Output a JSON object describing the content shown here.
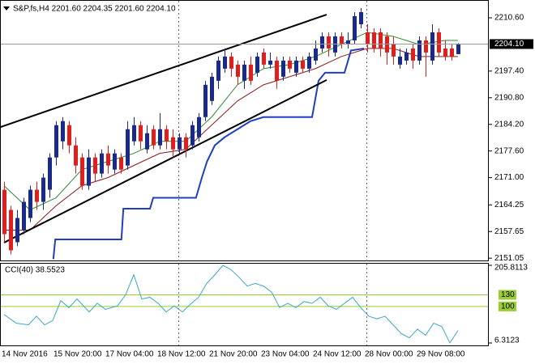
{
  "chart_data": {
    "type": "candlestick",
    "title": "S&P,fs,H4 2201.60 2204.35 2201.60 2204.10",
    "categories": [
      "14 Nov 2016",
      null,
      null,
      null,
      null,
      null,
      null,
      null,
      "15 Nov 20:00",
      null,
      null,
      null,
      null,
      null,
      null,
      null,
      "17 Nov 04:00",
      null,
      null,
      null,
      null,
      null,
      null,
      null,
      "18 Nov 12:00",
      null,
      null,
      null,
      null,
      null,
      null,
      null,
      "21 Nov 20:00",
      null,
      null,
      null,
      null,
      null,
      null,
      null,
      "23 Nov 04:00",
      null,
      null,
      null,
      null,
      null,
      null,
      null,
      "24 Nov 12:00",
      null,
      null,
      null,
      null,
      null,
      null,
      null,
      "28 Nov 00:00",
      null,
      null,
      null,
      null,
      null,
      null,
      null,
      "29 Nov 08:00",
      null,
      null,
      null,
      null,
      null,
      null
    ],
    "open": [
      2168,
      2163,
      2155,
      2158,
      2161,
      2168,
      2165,
      2168,
      2176,
      2180,
      2184,
      2179,
      2176,
      2169,
      2176,
      2172,
      2177,
      2173,
      2176,
      2174,
      2180,
      2184,
      2178,
      2183,
      2179,
      2183,
      2181,
      2178,
      2181,
      2179,
      2181,
      2186,
      2190,
      2195,
      2198,
      2201,
      2199,
      2195,
      2199,
      2197,
      2202,
      2199,
      2200,
      2196,
      2200,
      2197,
      2200,
      2198,
      2200,
      2203,
      2206,
      2202,
      2206,
      2204,
      2205,
      2209,
      2207,
      2207,
      2207,
      2206,
      2204,
      2199,
      2200,
      2203,
      2200,
      2205,
      2200,
      2207,
      2203,
      2203,
      2201.6
    ],
    "high": [
      2170,
      2164,
      2163,
      2166,
      2169,
      2170,
      2172,
      2177,
      2185,
      2186,
      2185,
      2181,
      2177,
      2178,
      2177,
      2178,
      2179,
      2178,
      2177,
      2185,
      2186,
      2185,
      2184,
      2184,
      2187,
      2184,
      2183,
      2182,
      2182,
      2185,
      2187,
      2195,
      2197,
      2201,
      2203,
      2202,
      2200,
      2200,
      2201,
      2202,
      2203,
      2202,
      2201,
      2201,
      2201,
      2201,
      2201,
      2202,
      2205,
      2207,
      2207,
      2207,
      2207,
      2207,
      2212,
      2213,
      2209,
      2208,
      2208,
      2207,
      2206,
      2203,
      2203,
      2204,
      2206,
      2206,
      2209,
      2208,
      2205,
      2204,
      2204.35
    ],
    "low": [
      2155,
      2152,
      2154,
      2157,
      2160,
      2163,
      2163,
      2166,
      2174,
      2178,
      2177,
      2172,
      2168,
      2168,
      2170,
      2171,
      2172,
      2172,
      2172,
      2173,
      2179,
      2178,
      2177,
      2178,
      2178,
      2178,
      2176,
      2177,
      2176,
      2178,
      2180,
      2185,
      2189,
      2193,
      2197,
      2196,
      2194,
      2193,
      2194,
      2196,
      2198,
      2198,
      2193,
      2195,
      2197,
      2196,
      2197,
      2197,
      2199,
      2202,
      2201,
      2201,
      2203,
      2203,
      2204,
      2208,
      2202,
      2202,
      2201,
      2199,
      2199,
      2198,
      2199,
      2198,
      2199,
      2196,
      2199,
      2201,
      2200,
      2200,
      2201.6
    ],
    "close": [
      2157,
      2153,
      2161,
      2165,
      2168,
      2165,
      2171,
      2176,
      2184,
      2185,
      2179,
      2174,
      2169,
      2176,
      2172,
      2177,
      2174,
      2177,
      2173,
      2183,
      2184,
      2180,
      2182,
      2179,
      2183,
      2180,
      2178,
      2181,
      2178,
      2184,
      2186,
      2194,
      2196,
      2200,
      2201,
      2198,
      2196,
      2199,
      2195,
      2201,
      2199,
      2200,
      2195,
      2200,
      2198,
      2200,
      2198,
      2201,
      2203,
      2206,
      2203,
      2206,
      2204,
      2205,
      2211,
      2212,
      2204,
      2203,
      2203,
      2202,
      2201,
      2201,
      2202,
      2200,
      2205,
      2202,
      2207,
      2202,
      2201,
      2201,
      2204.1
    ],
    "up_color": "#1a2a8c",
    "down_color": "#e01e1e",
    "ylim": [
      2150.48,
      2214.61
    ],
    "yticks": [
      {
        "value": 2210.6,
        "label": "2210.60"
      },
      {
        "value": 2197.4,
        "label": "2197.40"
      },
      {
        "value": 2190.8,
        "label": "2190.80"
      },
      {
        "value": 2184.2,
        "label": "2184.20"
      },
      {
        "value": 2177.6,
        "label": "2177.60"
      },
      {
        "value": 2171,
        "label": "2171.00"
      },
      {
        "value": 2164.25,
        "label": "2164.25"
      },
      {
        "value": 2157.65,
        "label": "2157.65"
      },
      {
        "value": 2151.05,
        "label": "2151.05"
      }
    ],
    "last_price": {
      "value": 2204.1,
      "label": "2204.10"
    },
    "lines": [
      {
        "color": "#2e8b2e",
        "x": [
          0,
          4,
          8,
          12,
          16,
          20,
          24,
          28,
          32,
          36,
          40,
          44,
          48,
          52,
          56,
          60,
          64,
          68,
          70
        ],
        "values": [
          2169,
          2163,
          2166,
          2173,
          2175,
          2177,
          2180,
          2180,
          2186,
          2194,
          2198,
          2199,
          2201,
          2204,
          2207,
          2206,
          2204,
          2205,
          2205
        ]
      },
      {
        "color": "#8b1a1a",
        "x": [
          0,
          4,
          8,
          12,
          16,
          20,
          24,
          28,
          32,
          36,
          40,
          44,
          48,
          52,
          56,
          60,
          64,
          68,
          70
        ],
        "values": [
          2158,
          2158,
          2164,
          2169,
          2171,
          2174,
          2177,
          2178,
          2184,
          2190,
          2194,
          2196,
          2198,
          2201,
          2203,
          2203,
          2201,
          2201,
          2201
        ]
      },
      {
        "color": "#1f3fbf",
        "x": [
          7.6,
          7.9,
          18.1,
          18.4,
          22.5,
          23,
          29.6,
          30.5,
          31.3,
          32.5,
          34,
          36,
          38,
          40,
          47.5,
          48.5,
          49.5,
          52.5,
          53.5,
          55.5
        ],
        "values": [
          2150.8,
          2155.7,
          2155.7,
          2163.3,
          2163.3,
          2166,
          2166,
          2171,
          2175,
          2179,
          2181,
          2183,
          2185,
          2186,
          2186,
          2195,
          2197,
          2197,
          2202.5,
          2203
        ]
      }
    ],
    "trendlines": [
      {
        "x": [
          -0.625,
          49.75
        ],
        "values": [
          2183.5,
          2211.4
        ]
      },
      {
        "x": [
          0,
          49.75
        ],
        "values": [
          2154.9,
          2195.2
        ]
      }
    ],
    "trendline_color": "#000000",
    "cci": {
      "label": "CCI(40) 38.5523",
      "color": "#3aa6c8",
      "level_color": "#9acd32",
      "ylim": [
        6.3123,
        205.8113
      ],
      "yticks": [
        205.8113,
        6.3123
      ],
      "levels": [
        130,
        100
      ],
      "x": [
        0,
        1.875,
        3.75,
        5,
        6.25,
        7.5,
        8.75,
        10,
        11.25,
        13.125,
        14.375,
        15.625,
        17.5,
        18.75,
        20,
        21.25,
        22.5,
        23.75,
        25,
        26.25,
        27.5,
        28.75,
        30,
        31.25,
        32.5,
        33.75,
        35,
        36.25,
        37.5,
        38.75,
        40,
        41.25,
        42.5,
        43.75,
        45,
        46.25,
        47.5,
        48.75,
        50,
        51.25,
        52.5,
        53.75,
        55,
        56.25,
        57.5,
        58.75,
        60,
        61.25,
        62.5,
        63.75,
        65,
        66.25,
        67.5,
        68.75,
        70
      ],
      "values": [
        79.4,
        57.2,
        52.8,
        75,
        52.8,
        63.9,
        114.9,
        97.2,
        119.3,
        86.1,
        108.2,
        92.7,
        101.6,
        130.4,
        181.4,
        119.3,
        123.8,
        108.2,
        86.1,
        101.6,
        86.1,
        106,
        123.8,
        159.2,
        181.4,
        205.8,
        194.7,
        174.8,
        152.6,
        159.2,
        152.6,
        137.1,
        97.2,
        108.2,
        97.2,
        112.7,
        108.2,
        123.8,
        101.6,
        92.7,
        108.2,
        123.8,
        97.2,
        75,
        68.3,
        75,
        52.8,
        30.6,
        19.5,
        41.7,
        26.2,
        57.2,
        48.4,
        6.5,
        38.5523
      ]
    }
  }
}
